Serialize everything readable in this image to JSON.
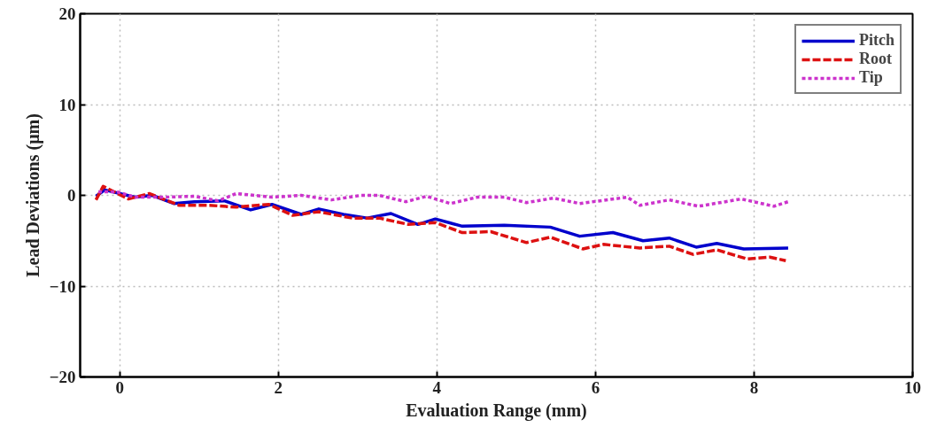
{
  "chart_data": {
    "type": "line",
    "xlabel": "Evaluation Range (mm)",
    "ylabel": "Lead Deviations (μm)",
    "xlim": [
      -0.5,
      10
    ],
    "ylim": [
      -20,
      20
    ],
    "xticks": [
      0,
      2,
      4,
      6,
      8,
      10
    ],
    "yticks": [
      -20,
      -10,
      0,
      10,
      20
    ],
    "grid": true,
    "legend": "top right",
    "series": [
      {
        "name": "Pitch",
        "color": "#0000cc",
        "line_style": "solid",
        "x": [
          -0.3,
          -0.19,
          0.19,
          0.41,
          0.68,
          0.94,
          1.32,
          1.65,
          1.92,
          2.29,
          2.51,
          2.82,
          3.12,
          3.42,
          3.76,
          3.98,
          4.32,
          4.85,
          5.43,
          5.8,
          6.22,
          6.6,
          6.93,
          7.27,
          7.53,
          7.87,
          8.43
        ],
        "values": [
          -0.1,
          0.6,
          -0.2,
          0.0,
          -0.9,
          -0.7,
          -0.6,
          -1.6,
          -1.0,
          -2.1,
          -1.5,
          -2.1,
          -2.5,
          -2.0,
          -3.2,
          -2.6,
          -3.4,
          -3.3,
          -3.5,
          -4.5,
          -4.1,
          -5.0,
          -4.7,
          -5.7,
          -5.3,
          -5.9,
          -5.8
        ]
      },
      {
        "name": "Root",
        "color": "#dd1111",
        "line_style": "dashed",
        "x": [
          -0.3,
          -0.21,
          0.11,
          0.37,
          0.75,
          1.13,
          1.47,
          1.88,
          2.18,
          2.51,
          2.93,
          3.27,
          3.64,
          3.98,
          4.32,
          4.68,
          5.13,
          5.43,
          5.84,
          6.1,
          6.56,
          6.93,
          7.23,
          7.53,
          7.91,
          8.2,
          8.4
        ],
        "values": [
          -0.5,
          1.0,
          -0.4,
          0.2,
          -1.1,
          -1.1,
          -1.3,
          -1.0,
          -2.2,
          -1.8,
          -2.5,
          -2.5,
          -3.2,
          -3.0,
          -4.1,
          -4.0,
          -5.2,
          -4.6,
          -5.9,
          -5.4,
          -5.8,
          -5.6,
          -6.5,
          -6.0,
          -7.0,
          -6.8,
          -7.2
        ]
      },
      {
        "name": "Tip",
        "color": "#cc33cc",
        "line_style": "dotted",
        "x": [
          -0.27,
          -0.04,
          0.19,
          0.56,
          0.94,
          1.24,
          1.47,
          1.92,
          2.29,
          2.67,
          3.04,
          3.27,
          3.61,
          3.87,
          4.17,
          4.51,
          4.85,
          5.13,
          5.47,
          5.8,
          6.4,
          6.56,
          6.93,
          7.3,
          7.84,
          8.25,
          8.43
        ],
        "values": [
          0.4,
          0.4,
          -0.2,
          -0.2,
          -0.1,
          -0.6,
          0.2,
          -0.2,
          0.0,
          -0.5,
          0.0,
          0.0,
          -0.7,
          -0.1,
          -0.9,
          -0.2,
          -0.2,
          -0.8,
          -0.3,
          -0.9,
          -0.2,
          -1.1,
          -0.5,
          -1.2,
          -0.4,
          -1.2,
          -0.7
        ]
      }
    ]
  }
}
